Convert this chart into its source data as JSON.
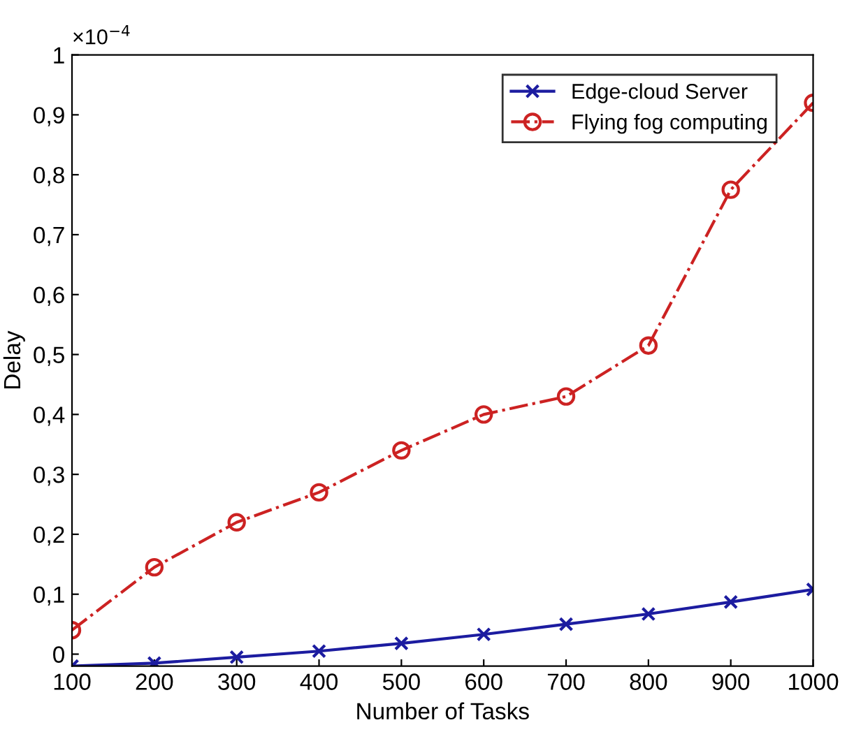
{
  "chart_data": {
    "type": "line",
    "xlabel": "Number of Tasks",
    "ylabel": "Delay",
    "annotations": [
      "×10$^{−4}$"
    ],
    "x": [
      100,
      200,
      300,
      400,
      500,
      600,
      700,
      800,
      900,
      1000
    ],
    "series": [
      {
        "name": "Edge-cloud Server",
        "color": "#1c1ca0",
        "marker": "cross",
        "line_style": "solid",
        "values": [
          -0.02,
          -0.015,
          -0.005,
          0.005,
          0.018,
          0.033,
          0.05,
          0.067,
          0.087,
          0.108
        ]
      },
      {
        "name": "Flying fog computing",
        "color": "#cc2222",
        "marker": "circle",
        "line_style": "dashdot",
        "values": [
          0.04,
          0.145,
          0.22,
          0.27,
          0.34,
          0.4,
          0.43,
          0.515,
          0.775,
          0.92
        ]
      }
    ],
    "xlim": [
      100,
      1000
    ],
    "xticks": [
      100,
      200,
      300,
      400,
      500,
      600,
      700,
      800,
      900,
      1000
    ],
    "ylim": [
      -0.02,
      1
    ],
    "yticks": [
      0,
      {
        "value": 0.1,
        "label": "0,1"
      },
      {
        "value": 0.2,
        "label": "0,2"
      },
      {
        "value": 0.3,
        "label": "0,3"
      },
      {
        "value": 0.4,
        "label": "0,4"
      },
      {
        "value": 0.5,
        "label": "0,5"
      },
      {
        "value": 0.6,
        "label": "0,6"
      },
      {
        "value": 0.7,
        "label": "0,7"
      },
      {
        "value": 0.8,
        "label": "0,8"
      },
      {
        "value": 0.9,
        "label": "0,9"
      },
      1
    ],
    "grid": false,
    "legend": "top right"
  }
}
